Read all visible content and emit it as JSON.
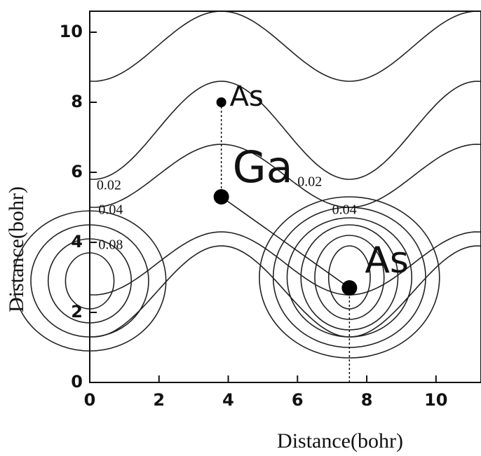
{
  "chart_data": {
    "type": "contour",
    "xlabel": "Distance(bohr)",
    "ylabel": "Distance(bohr)",
    "xlim": [
      0,
      11.3
    ],
    "ylim": [
      0,
      10.6
    ],
    "xticks": [
      0,
      2,
      4,
      6,
      8,
      10
    ],
    "yticks": [
      0,
      2,
      4,
      6,
      8,
      10
    ],
    "atoms": [
      {
        "name": "As",
        "x": 3.8,
        "y": 8.0
      },
      {
        "name": "Ga",
        "x": 3.8,
        "y": 5.3
      },
      {
        "name": "As",
        "x": 7.5,
        "y": 2.7
      }
    ],
    "contour_labels": [
      {
        "level": 0.02,
        "x": 0.2,
        "y": 5.6
      },
      {
        "level": 0.04,
        "x": 0.25,
        "y": 4.9
      },
      {
        "level": 0.08,
        "x": 0.25,
        "y": 3.9
      },
      {
        "level": 0.02,
        "x": 6.0,
        "y": 5.7
      },
      {
        "level": 0.04,
        "x": 7.0,
        "y": 4.9
      }
    ]
  }
}
